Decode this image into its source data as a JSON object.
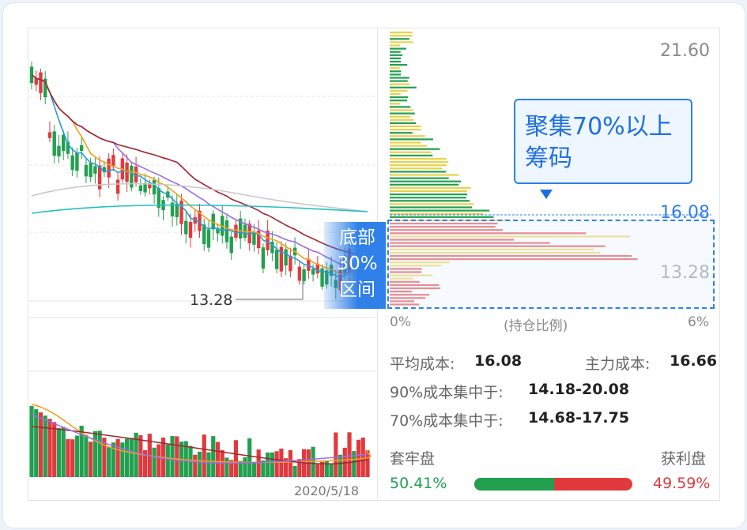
{
  "chart": {
    "price_high": "21.60",
    "price_avg": "16.08",
    "price_low": "13.28",
    "low_marker": "13.28",
    "date": "2020/5/18",
    "axis_left": "0%",
    "axis_mid": "(持仓比例)",
    "axis_right": "6%"
  },
  "callout": {
    "line1": "聚集70%以上",
    "line2": "筹码"
  },
  "bottom_zone": {
    "line1": "底部",
    "line2": "30%",
    "line3": "区间"
  },
  "stats": {
    "avg_cost_label": "平均成本:",
    "avg_cost_value": "16.08",
    "main_cost_label": "主力成本:",
    "main_cost_value": "16.66",
    "cost90_label": "90%成本集中于:",
    "cost90_value": "14.18-20.08",
    "cost70_label": "70%成本集中于:",
    "cost70_value": "14.68-17.75"
  },
  "profit": {
    "trapped_label": "套牢盘",
    "profit_label": "获利盘",
    "trapped_value": "50.41%",
    "profit_value": "49.59%",
    "trapped_ratio": 0.5041
  },
  "colors": {
    "up": "#e03a3e",
    "down": "#22a050",
    "accent": "#2f80e8",
    "yellow": "#e8d24a"
  }
}
